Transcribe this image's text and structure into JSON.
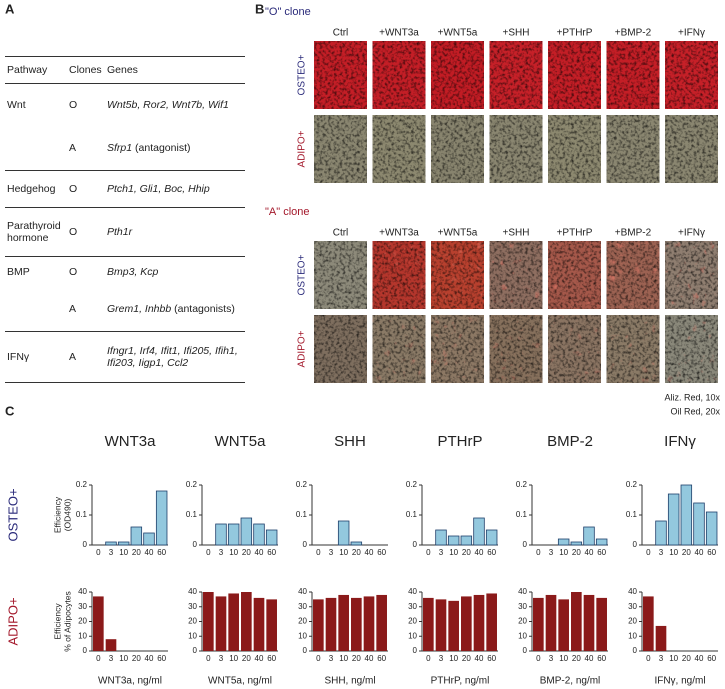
{
  "panel_labels": [
    "A",
    "B",
    "C"
  ],
  "table": {
    "header": [
      "Pathway",
      "Clones",
      "Genes"
    ],
    "rows": [
      {
        "pathway": "Wnt",
        "clone": "O",
        "genes": "Wnt5b, Ror2, Wnt7b, Wif1"
      },
      {
        "clone": "A",
        "genes": "Sfrp1",
        "note": "(antagonist)"
      },
      {
        "pathway": "Hedgehog",
        "clone": "O",
        "genes": "Ptch1, Gli1, Boc, Hhip"
      },
      {
        "pathway": "Parathyroid hormone",
        "clone": "O",
        "genes": "Pth1r"
      },
      {
        "pathway": "BMP",
        "clone": "O",
        "genes": "Bmp3, Kcp"
      },
      {
        "clone": "A",
        "genes": "Grem1, Inhbb",
        "note": "(antagonists)"
      },
      {
        "pathway": "IFNγ",
        "clone": "A",
        "genes": "Ifngr1, Irf4, Ifit1, Ifi205, Ifih1, Ifi203, Iigp1, Ccl2"
      }
    ]
  },
  "panel_b": {
    "clones": [
      "\"O\" clone",
      "\"A\" clone"
    ],
    "treatments": [
      "Ctrl",
      "+WNT3a",
      "+WNT5a",
      "+SHH",
      "+PTHrP",
      "+BMP-2",
      "+IFNγ"
    ],
    "stains": [
      "OSTEO+",
      "ADIPO+"
    ],
    "notes": [
      "Aliz. Red, 10x",
      "Oil Red, 20x"
    ]
  },
  "panel_c_rows": [
    "OSTEO+",
    "ADIPO+"
  ],
  "chart_data": [
    {
      "type": "bar",
      "title": "WNT3a",
      "ylabel": [
        "Efficiency",
        "(OD490)"
      ],
      "categories": [
        "0",
        "3",
        "10",
        "20",
        "40",
        "60"
      ],
      "values": [
        0,
        0.01,
        0.01,
        0.06,
        0.04,
        0.18
      ],
      "ylim": [
        0,
        0.2
      ],
      "yticks": [
        0,
        0.1,
        0.2
      ],
      "color": "#93c8de"
    },
    {
      "type": "bar",
      "title": "WNT5a",
      "categories": [
        "0",
        "3",
        "10",
        "20",
        "40",
        "60"
      ],
      "values": [
        0,
        0.07,
        0.07,
        0.09,
        0.07,
        0.05
      ],
      "ylim": [
        0,
        0.2
      ],
      "yticks": [
        0,
        0.1,
        0.2
      ],
      "color": "#93c8de"
    },
    {
      "type": "bar",
      "title": "SHH",
      "categories": [
        "0",
        "3",
        "10",
        "20",
        "40",
        "60"
      ],
      "values": [
        0,
        0,
        0.08,
        0.01,
        0,
        0
      ],
      "ylim": [
        0,
        0.2
      ],
      "yticks": [
        0,
        0.1,
        0.2
      ],
      "color": "#93c8de"
    },
    {
      "type": "bar",
      "title": "PTHrP",
      "categories": [
        "0",
        "3",
        "10",
        "20",
        "40",
        "60"
      ],
      "values": [
        0,
        0.05,
        0.03,
        0.03,
        0.09,
        0.05
      ],
      "ylim": [
        0,
        0.2
      ],
      "yticks": [
        0,
        0.1,
        0.2
      ],
      "color": "#93c8de"
    },
    {
      "type": "bar",
      "title": "BMP-2",
      "categories": [
        "0",
        "3",
        "10",
        "20",
        "40",
        "60"
      ],
      "values": [
        0,
        0,
        0.02,
        0.01,
        0.06,
        0.02
      ],
      "ylim": [
        0,
        0.2
      ],
      "yticks": [
        0,
        0.1,
        0.2
      ],
      "color": "#93c8de"
    },
    {
      "type": "bar",
      "title": "IFNγ",
      "categories": [
        "0",
        "3",
        "10",
        "20",
        "40",
        "60"
      ],
      "values": [
        0,
        0.08,
        0.17,
        0.2,
        0.14,
        0.11
      ],
      "ylim": [
        0,
        0.2
      ],
      "yticks": [
        0,
        0.1,
        0.2
      ],
      "color": "#93c8de"
    },
    {
      "type": "bar",
      "xlabel": "WNT3a, ng/ml",
      "ylabel": [
        "Efficiency",
        "% of Adipocytes"
      ],
      "categories": [
        "0",
        "3",
        "10",
        "20",
        "40",
        "60"
      ],
      "values": [
        37,
        8,
        0,
        0,
        0,
        0
      ],
      "ylim": [
        0,
        40
      ],
      "yticks": [
        0,
        10,
        20,
        30,
        40
      ],
      "color": "#8b1a1a"
    },
    {
      "type": "bar",
      "xlabel": "WNT5a, ng/ml",
      "categories": [
        "0",
        "3",
        "10",
        "20",
        "40",
        "60"
      ],
      "values": [
        40,
        37,
        39,
        40,
        36,
        35
      ],
      "ylim": [
        0,
        40
      ],
      "yticks": [
        0,
        10,
        20,
        30,
        40
      ],
      "color": "#8b1a1a"
    },
    {
      "type": "bar",
      "xlabel": "SHH, ng/ml",
      "categories": [
        "0",
        "3",
        "10",
        "20",
        "40",
        "60"
      ],
      "values": [
        35,
        36,
        38,
        36,
        37,
        38
      ],
      "ylim": [
        0,
        40
      ],
      "yticks": [
        0,
        10,
        20,
        30,
        40
      ],
      "color": "#8b1a1a"
    },
    {
      "type": "bar",
      "xlabel": "PTHrP, ng/ml",
      "categories": [
        "0",
        "3",
        "10",
        "20",
        "40",
        "60"
      ],
      "values": [
        36,
        35,
        34,
        37,
        38,
        39
      ],
      "ylim": [
        0,
        40
      ],
      "yticks": [
        0,
        10,
        20,
        30,
        40
      ],
      "color": "#8b1a1a"
    },
    {
      "type": "bar",
      "xlabel": "BMP-2, ng/ml",
      "categories": [
        "0",
        "3",
        "10",
        "20",
        "40",
        "60"
      ],
      "values": [
        36,
        38,
        35,
        40,
        38,
        36
      ],
      "ylim": [
        0,
        40
      ],
      "yticks": [
        0,
        10,
        20,
        30,
        40
      ],
      "color": "#8b1a1a"
    },
    {
      "type": "bar",
      "xlabel": "IFNγ, ng/ml",
      "categories": [
        "0",
        "3",
        "10",
        "20",
        "40",
        "60"
      ],
      "values": [
        37,
        17,
        0,
        0,
        0,
        0
      ],
      "ylim": [
        0,
        40
      ],
      "yticks": [
        0,
        10,
        20,
        30,
        40
      ],
      "color": "#8b1a1a"
    }
  ]
}
